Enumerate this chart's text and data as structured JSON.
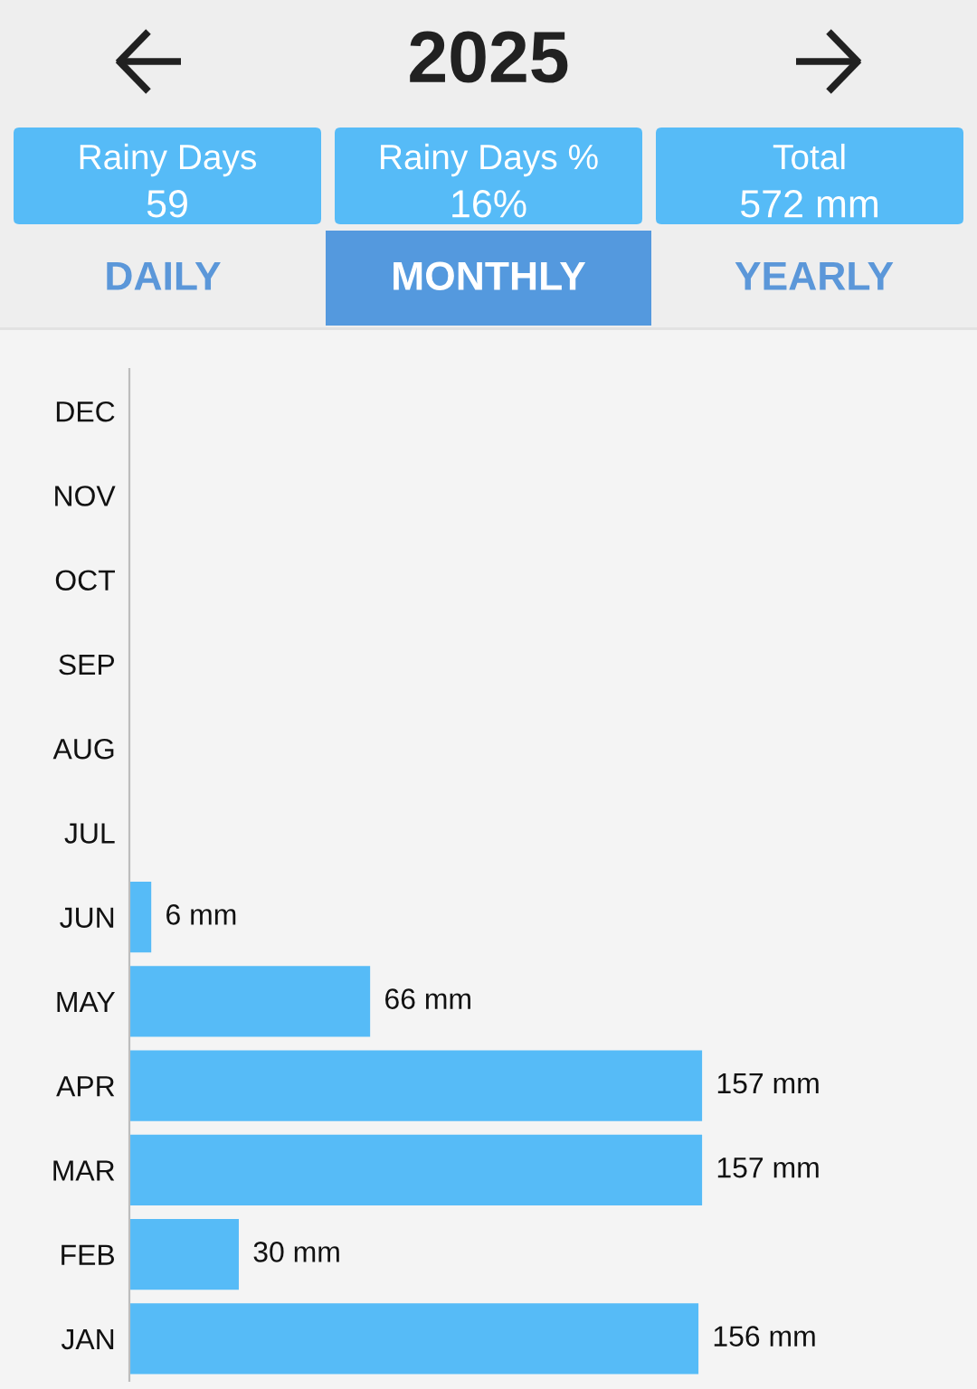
{
  "chart_data": {
    "type": "bar",
    "orientation": "horizontal",
    "title": "2025",
    "categories": [
      "DEC",
      "NOV",
      "OCT",
      "SEP",
      "AUG",
      "JUL",
      "JUN",
      "MAY",
      "APR",
      "MAR",
      "FEB",
      "JAN"
    ],
    "values": [
      null,
      null,
      null,
      null,
      null,
      null,
      6,
      66,
      157,
      157,
      30,
      156
    ],
    "value_labels": [
      null,
      null,
      null,
      null,
      null,
      null,
      "6 mm",
      "66 mm",
      "157 mm",
      "157 mm",
      "30 mm",
      "156 mm"
    ],
    "color": "#56bbf7",
    "tick_labels": "y",
    "annotations": [
      "Rainy Days",
      "59",
      "Rainy Days %",
      "16%",
      "Total",
      "572 mm",
      "DAILY",
      "MONTHLY",
      "YEARLY"
    ]
  }
}
